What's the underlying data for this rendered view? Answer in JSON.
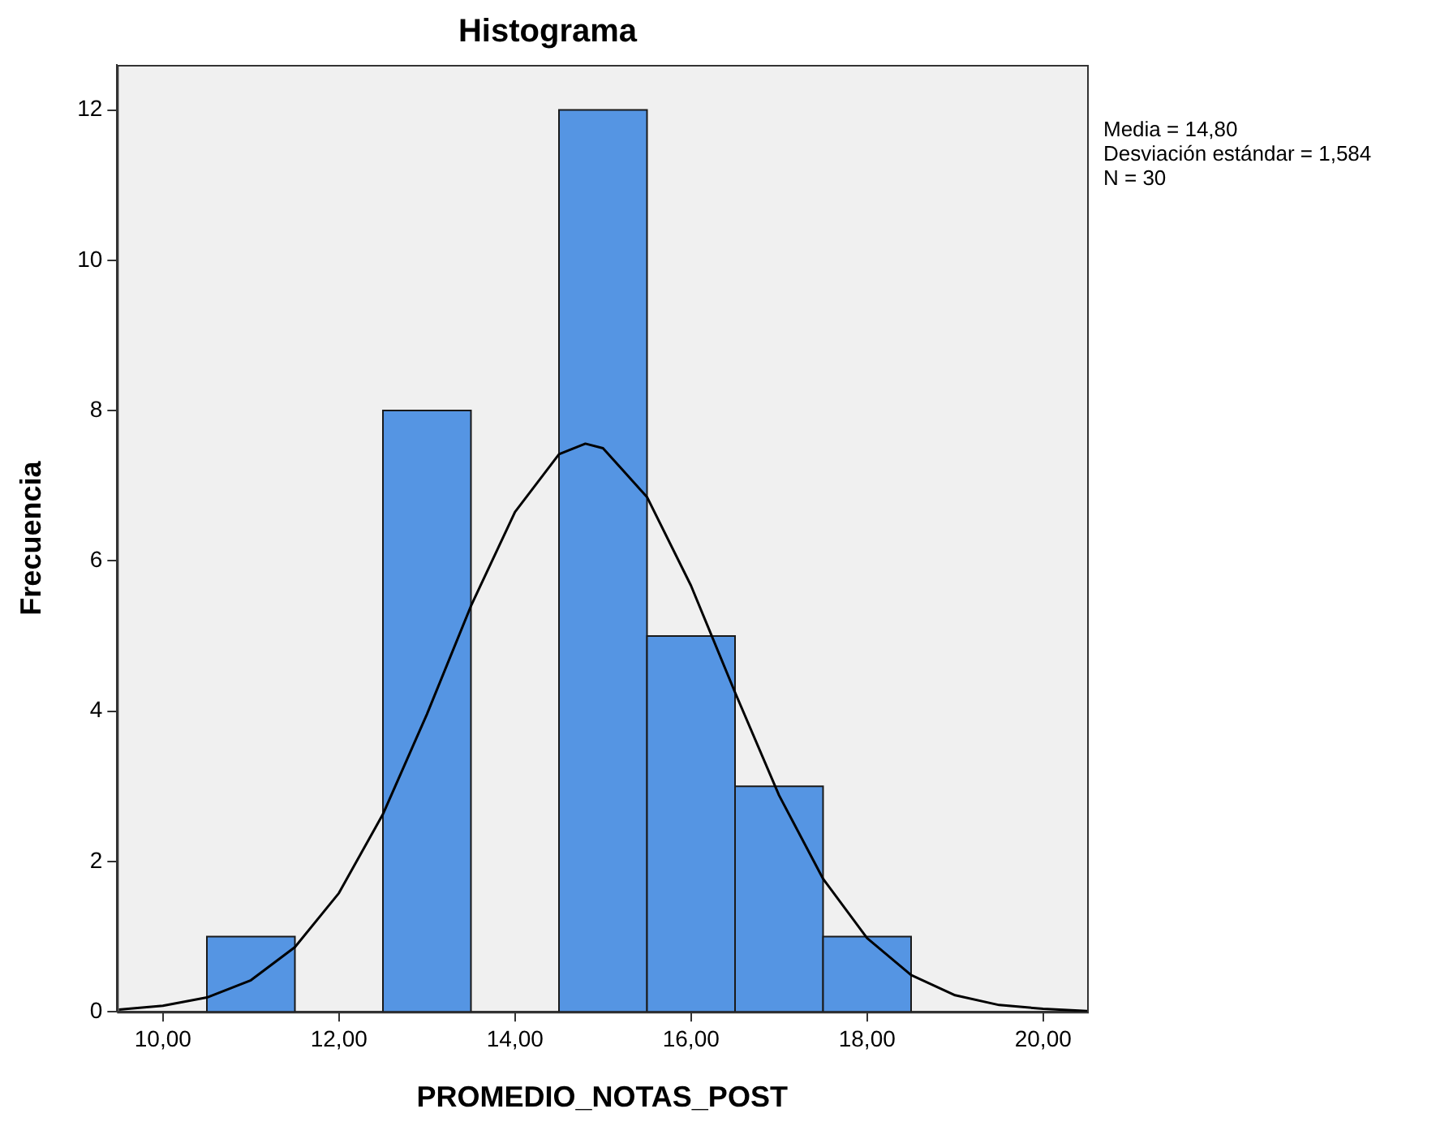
{
  "chart_data": {
    "type": "histogram",
    "title": "Histograma",
    "xlabel": "PROMEDIO_NOTAS_POST",
    "ylabel": "Frecuencia",
    "bins": [
      10.5,
      11.5,
      12.5,
      13.5,
      14.5,
      15.5,
      16.5,
      17.5,
      18.5
    ],
    "values": [
      1,
      0,
      8,
      0,
      12,
      5,
      3,
      1
    ],
    "color": "#5595e3",
    "xlim": [
      9.48,
      20.5
    ],
    "xticks": [
      {
        "value": 10,
        "label": "10,00"
      },
      {
        "value": 12,
        "label": "12,00"
      },
      {
        "value": 14,
        "label": "14,00"
      },
      {
        "value": 16,
        "label": "16,00"
      },
      {
        "value": 18,
        "label": "18,00"
      },
      {
        "value": 20,
        "label": "20,00"
      }
    ],
    "ylim": [
      0,
      12.6
    ],
    "yticks": [
      0,
      2,
      4,
      6,
      8,
      10,
      12
    ],
    "grid": false,
    "annotations": [
      "Media = 14,80",
      "Desviación estándar = 1,584",
      "N = 30"
    ],
    "series": [
      {
        "type": "line",
        "color": "#000000",
        "x": [
          9.5,
          10,
          10.5,
          11,
          11.5,
          12,
          12.5,
          13,
          13.5,
          14,
          14.5,
          14.8,
          15,
          15.5,
          16,
          16.5,
          17,
          17.5,
          18,
          18.5,
          19,
          19.5,
          20,
          20.5
        ],
        "values": [
          0.03,
          0.08,
          0.19,
          0.42,
          0.86,
          1.58,
          2.63,
          3.96,
          5.4,
          6.65,
          7.42,
          7.56,
          7.5,
          6.85,
          5.67,
          4.25,
          2.88,
          1.77,
          0.98,
          0.49,
          0.22,
          0.09,
          0.04,
          0.01
        ]
      }
    ]
  }
}
